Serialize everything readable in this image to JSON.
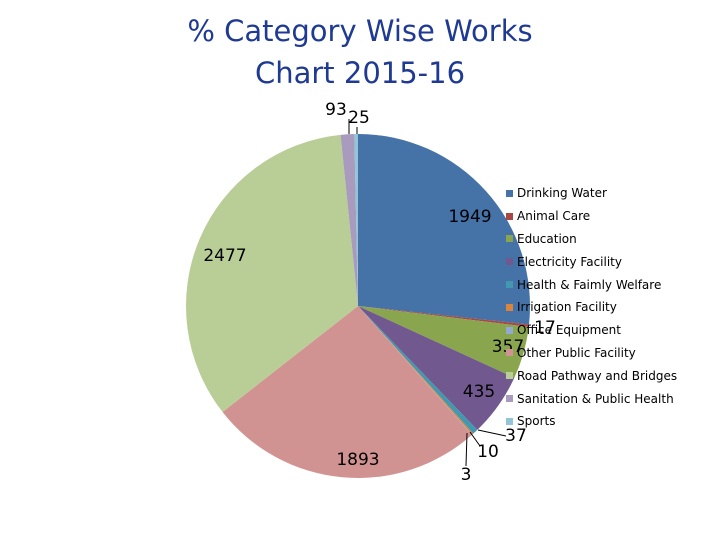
{
  "title_lines": [
    "% Category Wise Works",
    "Chart 2015-16"
  ],
  "chart_data": {
    "type": "pie",
    "title": "% Category Wise Works Chart 2015-16",
    "categories": [
      "Drinking Water",
      "Animal Care",
      "Education",
      "Electricity Facility",
      "Health & Faimly Welfare",
      "Irrigation Facility",
      "Office Equipment",
      "Other Public Facility",
      "Road Pathway and Bridges",
      "Sanitation & Public Health",
      "Sports"
    ],
    "values": [
      1949,
      17,
      357,
      435,
      37,
      10,
      3,
      1893,
      2477,
      93,
      25
    ],
    "colors": [
      "#4572a7",
      "#aa4643",
      "#89a54e",
      "#71588f",
      "#4198af",
      "#db843d",
      "#93a9cf",
      "#d19392",
      "#b9cd96",
      "#a99bbd",
      "#92c5d6"
    ],
    "legend_position": "right",
    "data_labels": [
      "1949",
      "17",
      "357",
      "435",
      "37",
      "10",
      "3",
      "1893",
      "2477",
      "93",
      "25"
    ]
  }
}
